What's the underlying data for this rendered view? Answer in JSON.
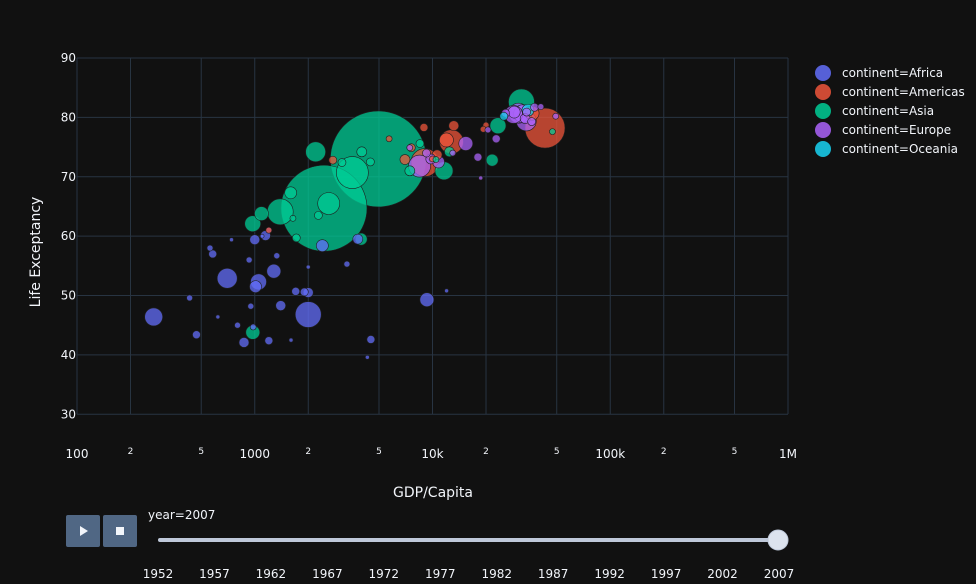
{
  "chart_data": {
    "type": "scatter",
    "subtype": "bubble",
    "xlabel": "GDP/Capita",
    "ylabel": "Life Exceptancy",
    "xscale": "log",
    "xlim": [
      100,
      1000000
    ],
    "ylim": [
      25,
      90
    ],
    "yticks": [
      30,
      40,
      50,
      60,
      70,
      80,
      90
    ],
    "xticks_major": [
      {
        "value": 100,
        "label": "100"
      },
      {
        "value": 1000,
        "label": "1000"
      },
      {
        "value": 10000,
        "label": "10k"
      },
      {
        "value": 100000,
        "label": "100k"
      },
      {
        "value": 1000000,
        "label": "1M"
      }
    ],
    "xticks_minor": [
      {
        "value": 200,
        "label": "2"
      },
      {
        "value": 500,
        "label": "5"
      },
      {
        "value": 2000,
        "label": "2"
      },
      {
        "value": 5000,
        "label": "5"
      },
      {
        "value": 20000,
        "label": "2"
      },
      {
        "value": 50000,
        "label": "5"
      },
      {
        "value": 200000,
        "label": "2"
      },
      {
        "value": 500000,
        "label": "5"
      }
    ],
    "legend_position": "top-right",
    "series": [
      {
        "name": "continent=Africa",
        "color": "#636efa",
        "points": [
          {
            "x": 270,
            "y": 46.4,
            "r": 9
          },
          {
            "x": 470,
            "y": 43.4,
            "r": 4
          },
          {
            "x": 700,
            "y": 52.9,
            "r": 10
          },
          {
            "x": 1000,
            "y": 59.4,
            "r": 5
          },
          {
            "x": 1280,
            "y": 54.1,
            "r": 7
          },
          {
            "x": 1010,
            "y": 51.5,
            "r": 6
          },
          {
            "x": 2000,
            "y": 46.8,
            "r": 13
          },
          {
            "x": 9300,
            "y": 49.3,
            "r": 7
          },
          {
            "x": 1400,
            "y": 48.3,
            "r": 5
          },
          {
            "x": 1050,
            "y": 52.3,
            "r": 8
          },
          {
            "x": 800,
            "y": 45.0,
            "r": 3
          },
          {
            "x": 870,
            "y": 42.1,
            "r": 5
          },
          {
            "x": 1150,
            "y": 60.1,
            "r": 5
          },
          {
            "x": 1900,
            "y": 50.6,
            "r": 4
          },
          {
            "x": 2000,
            "y": 50.5,
            "r": 5
          },
          {
            "x": 930,
            "y": 56.0,
            "r": 3
          },
          {
            "x": 620,
            "y": 46.4,
            "r": 2
          },
          {
            "x": 580,
            "y": 57.0,
            "r": 4
          },
          {
            "x": 430,
            "y": 49.6,
            "r": 3
          },
          {
            "x": 4300,
            "y": 39.6,
            "r": 2
          },
          {
            "x": 4500,
            "y": 42.6,
            "r": 4
          },
          {
            "x": 3800,
            "y": 59.5,
            "r": 5
          },
          {
            "x": 1200,
            "y": 61.0,
            "r": 3
          },
          {
            "x": 1600,
            "y": 42.5,
            "r": 2
          },
          {
            "x": 950,
            "y": 48.2,
            "r": 3
          },
          {
            "x": 1330,
            "y": 56.7,
            "r": 3
          },
          {
            "x": 740,
            "y": 59.4,
            "r": 2
          },
          {
            "x": 1700,
            "y": 50.7,
            "r": 4
          },
          {
            "x": 12000,
            "y": 50.8,
            "r": 2
          },
          {
            "x": 3300,
            "y": 55.3,
            "r": 3
          },
          {
            "x": 1200,
            "y": 42.4,
            "r": 4
          },
          {
            "x": 2400,
            "y": 58.4,
            "r": 6
          },
          {
            "x": 1100,
            "y": 60.0,
            "r": 2
          },
          {
            "x": 2000,
            "y": 54.8,
            "r": 2
          },
          {
            "x": 560,
            "y": 58.0,
            "r": 3
          },
          {
            "x": 980,
            "y": 44.7,
            "r": 3
          }
        ]
      },
      {
        "name": "continent=Americas",
        "color": "#ef553b",
        "points": [
          {
            "x": 42950,
            "y": 78.2,
            "r": 20
          },
          {
            "x": 12780,
            "y": 75.9,
            "r": 12
          },
          {
            "x": 9065,
            "y": 72.4,
            "r": 14
          },
          {
            "x": 11977,
            "y": 76.2,
            "r": 7
          },
          {
            "x": 13171,
            "y": 78.6,
            "r": 5
          },
          {
            "x": 36320,
            "y": 80.7,
            "r": 7
          },
          {
            "x": 7000,
            "y": 72.9,
            "r": 5
          },
          {
            "x": 10611,
            "y": 73.7,
            "r": 5
          },
          {
            "x": 8948,
            "y": 78.3,
            "r": 4
          },
          {
            "x": 5700,
            "y": 76.4,
            "r": 3
          },
          {
            "x": 2749,
            "y": 72.8,
            "r": 4
          },
          {
            "x": 7600,
            "y": 74.9,
            "r": 4
          },
          {
            "x": 10000,
            "y": 73.0,
            "r": 3
          },
          {
            "x": 20000,
            "y": 78.7,
            "r": 3
          },
          {
            "x": 19300,
            "y": 78.0,
            "r": 3
          },
          {
            "x": 1200,
            "y": 61.0,
            "r": 3
          }
        ]
      },
      {
        "name": "continent=Asia",
        "color": "#00cc96",
        "points": [
          {
            "x": 4959,
            "y": 73.0,
            "r": 48
          },
          {
            "x": 2452,
            "y": 64.7,
            "r": 43
          },
          {
            "x": 3541,
            "y": 70.7,
            "r": 16
          },
          {
            "x": 31656,
            "y": 82.6,
            "r": 13
          },
          {
            "x": 1391,
            "y": 64.1,
            "r": 13
          },
          {
            "x": 2606,
            "y": 65.5,
            "r": 11
          },
          {
            "x": 2200,
            "y": 74.2,
            "r": 10
          },
          {
            "x": 11605,
            "y": 71.0,
            "r": 9
          },
          {
            "x": 23348,
            "y": 78.6,
            "r": 8
          },
          {
            "x": 974,
            "y": 62.1,
            "r": 8
          },
          {
            "x": 1091,
            "y": 63.8,
            "r": 7
          },
          {
            "x": 4000,
            "y": 74.2,
            "r": 5
          },
          {
            "x": 3970,
            "y": 59.5,
            "r": 6
          },
          {
            "x": 975,
            "y": 43.8,
            "r": 7
          },
          {
            "x": 21655,
            "y": 72.8,
            "r": 6
          },
          {
            "x": 1593,
            "y": 67.3,
            "r": 6
          },
          {
            "x": 12452,
            "y": 74.2,
            "r": 5
          },
          {
            "x": 7458,
            "y": 71.0,
            "r": 5
          },
          {
            "x": 2280,
            "y": 63.5,
            "r": 4
          },
          {
            "x": 4471,
            "y": 72.5,
            "r": 4
          },
          {
            "x": 3095,
            "y": 72.4,
            "r": 4
          },
          {
            "x": 1713,
            "y": 59.7,
            "r": 4
          },
          {
            "x": 8500,
            "y": 75.6,
            "r": 4
          },
          {
            "x": 47307,
            "y": 77.6,
            "r": 3
          },
          {
            "x": 10461,
            "y": 72.9,
            "r": 3
          },
          {
            "x": 1640,
            "y": 63.0,
            "r": 3
          }
        ]
      },
      {
        "name": "continent=Europe",
        "color": "#ab63fa",
        "points": [
          {
            "x": 8458,
            "y": 71.8,
            "r": 11
          },
          {
            "x": 33692,
            "y": 79.4,
            "r": 10
          },
          {
            "x": 30470,
            "y": 80.7,
            "r": 10
          },
          {
            "x": 32170,
            "y": 80.6,
            "r": 9
          },
          {
            "x": 28570,
            "y": 80.5,
            "r": 9
          },
          {
            "x": 15390,
            "y": 75.6,
            "r": 7
          },
          {
            "x": 10808,
            "y": 72.5,
            "r": 6
          },
          {
            "x": 28821,
            "y": 80.9,
            "r": 6
          },
          {
            "x": 33207,
            "y": 79.8,
            "r": 5
          },
          {
            "x": 22833,
            "y": 76.4,
            "r": 4
          },
          {
            "x": 9786,
            "y": 73.0,
            "r": 5
          },
          {
            "x": 18008,
            "y": 73.3,
            "r": 4
          },
          {
            "x": 36126,
            "y": 79.3,
            "r": 4
          },
          {
            "x": 33860,
            "y": 80.9,
            "r": 4
          },
          {
            "x": 37506,
            "y": 81.7,
            "r": 4
          },
          {
            "x": 9254,
            "y": 74.0,
            "r": 4
          },
          {
            "x": 7446,
            "y": 74.9,
            "r": 3
          },
          {
            "x": 25768,
            "y": 80.7,
            "r": 4
          },
          {
            "x": 20510,
            "y": 77.9,
            "r": 3
          },
          {
            "x": 13000,
            "y": 74.0,
            "r": 3
          },
          {
            "x": 49357,
            "y": 80.2,
            "r": 3
          },
          {
            "x": 40676,
            "y": 81.8,
            "r": 3
          },
          {
            "x": 18678,
            "y": 69.8,
            "r": 2
          }
        ]
      },
      {
        "name": "continent=Oceania",
        "color": "#19d3f3",
        "points": [
          {
            "x": 34435,
            "y": 81.2,
            "r": 6
          },
          {
            "x": 25185,
            "y": 80.2,
            "r": 4
          }
        ]
      }
    ],
    "slider": {
      "current_label": "year=",
      "current_value": "2007",
      "years": [
        "1952",
        "1957",
        "1962",
        "1967",
        "1972",
        "1977",
        "1982",
        "1987",
        "1992",
        "1997",
        "2002",
        "2007"
      ],
      "selected_index": 11
    }
  },
  "controls": {
    "play_icon": "play-icon",
    "stop_icon": "stop-icon"
  },
  "colors": {
    "background": "#111111",
    "grid": "#283442",
    "text": "#f2f5fa",
    "button": "#506784",
    "slider_rail": "#bec8d9"
  }
}
